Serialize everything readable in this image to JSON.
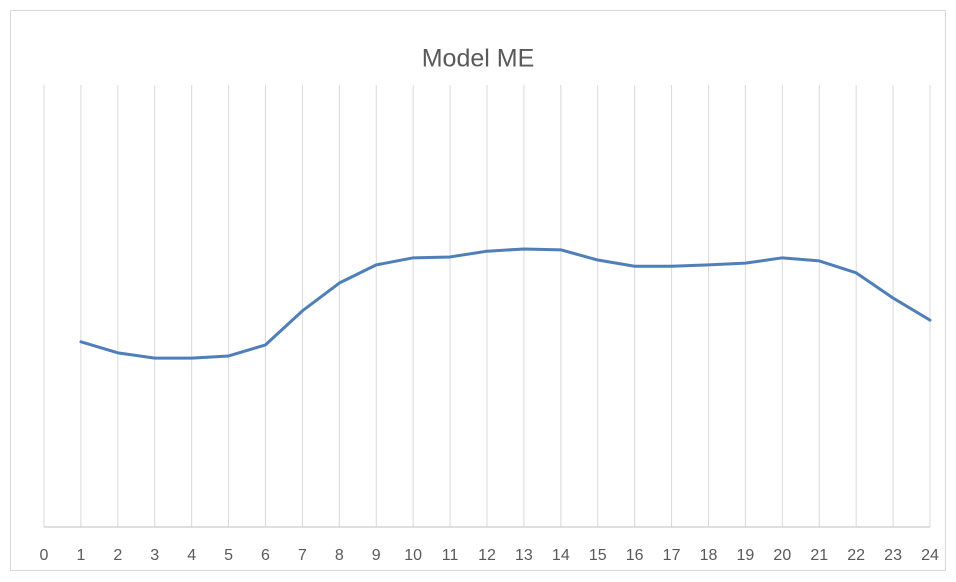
{
  "chart_data": {
    "type": "line",
    "title": "Model ME",
    "x": [
      1,
      2,
      3,
      4,
      5,
      6,
      7,
      8,
      9,
      10,
      11,
      12,
      13,
      14,
      15,
      16,
      17,
      18,
      19,
      20,
      21,
      22,
      23,
      24
    ],
    "series": [
      {
        "name": "Model ME",
        "color": "#4e7fb9",
        "values": [
          41.9,
          39.4,
          38.2,
          38.2,
          38.7,
          41.2,
          48.9,
          55.2,
          59.3,
          60.9,
          61.1,
          62.4,
          62.9,
          62.7,
          60.4,
          59.0,
          59.0,
          59.3,
          59.7,
          60.9,
          60.2,
          57.5,
          51.8,
          46.8
        ]
      }
    ],
    "xlim": [
      0,
      24
    ],
    "xticks": [
      0,
      1,
      2,
      3,
      4,
      5,
      6,
      7,
      8,
      9,
      10,
      11,
      12,
      13,
      14,
      15,
      16,
      17,
      18,
      19,
      20,
      21,
      22,
      23,
      24
    ],
    "ylim": [
      0,
      100
    ],
    "grid": true
  }
}
